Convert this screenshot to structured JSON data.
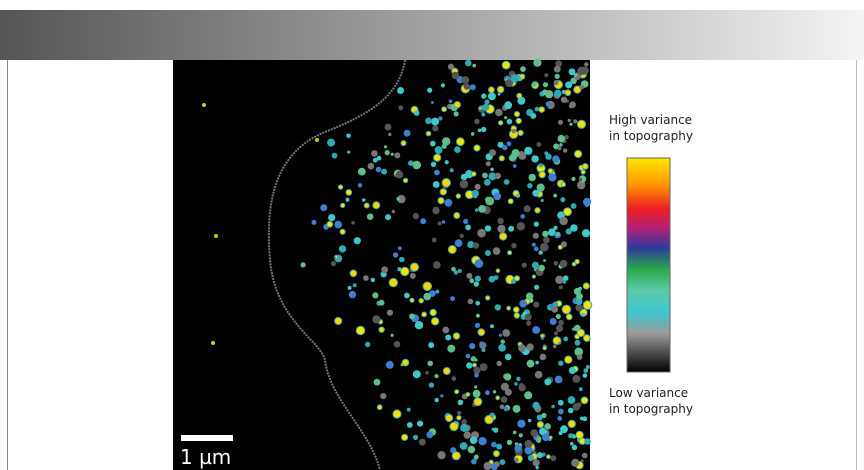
{
  "scale_bar": {
    "label": "1 µm"
  },
  "legend": {
    "high": [
      "High variance",
      "in topography"
    ],
    "low": [
      "Low variance",
      "in topography"
    ]
  }
}
